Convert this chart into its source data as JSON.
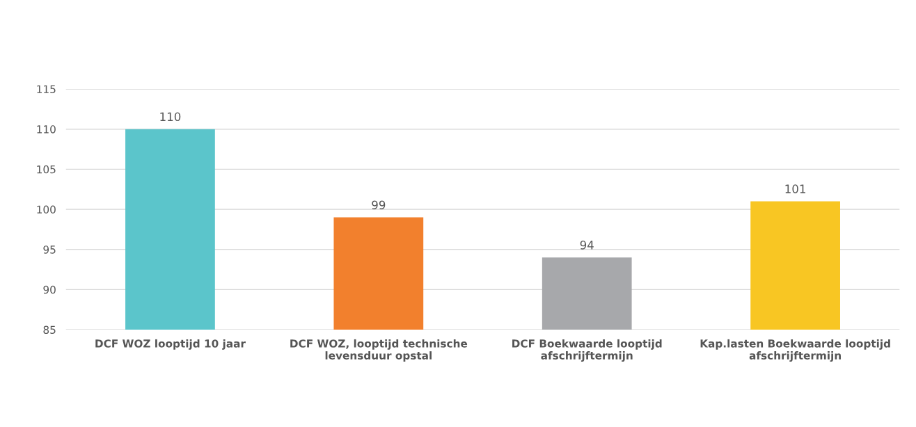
{
  "chart_data": {
    "type": "bar",
    "categories": [
      "DCF WOZ looptijd 10 jaar",
      "DCF WOZ, looptijd technische\nlevensduur opstal",
      "DCF Boekwaarde looptijd\nafschrijftermijn",
      "Kap.lasten Boekwaarde looptijd\nafschrijftermijn"
    ],
    "values": [
      110,
      99,
      94,
      101
    ],
    "colors": [
      "#5bc5cb",
      "#f2802d",
      "#a7a8ab",
      "#f8c623"
    ],
    "ylim": [
      85,
      115
    ],
    "yticks": [
      85,
      90,
      95,
      100,
      105,
      110,
      115
    ],
    "grid": "y",
    "data_labels": true
  }
}
